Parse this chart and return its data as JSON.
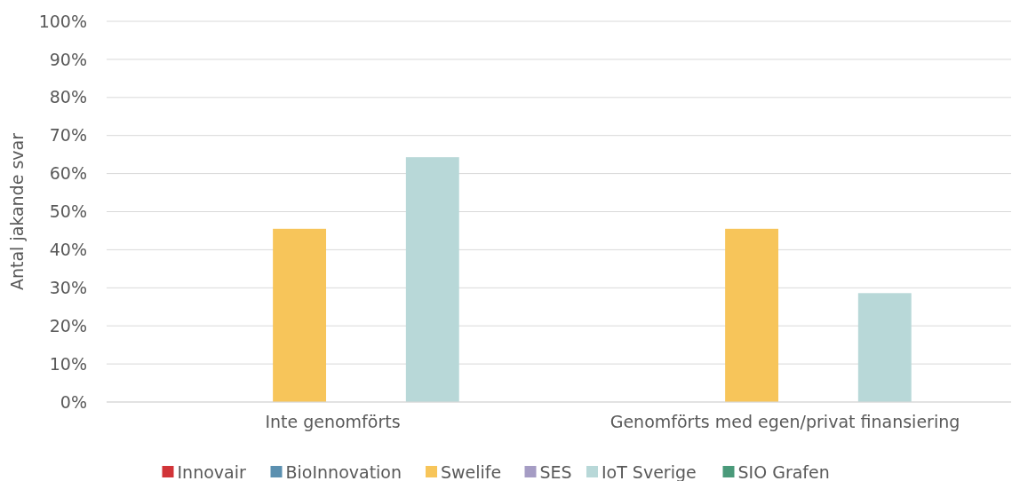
{
  "chart_data": {
    "type": "bar",
    "ylabel": "Antal jakande svar",
    "categories": [
      "Inte genomförts",
      "Genomförts med egen/privat finansiering"
    ],
    "series": [
      {
        "name": "Innovair",
        "color": "#d13438",
        "values": [
          0,
          0
        ]
      },
      {
        "name": "BioInnovation",
        "color": "#5b90b0",
        "values": [
          0,
          0
        ]
      },
      {
        "name": "Swelife",
        "color": "#f7c55a",
        "values": [
          45.5,
          45.5
        ]
      },
      {
        "name": "SES",
        "color": "#a59cc4",
        "values": [
          0,
          0
        ]
      },
      {
        "name": "IoT Sverige",
        "color": "#b8d8d8",
        "values": [
          64.3,
          28.6
        ]
      },
      {
        "name": "SIO Grafen",
        "color": "#4a9a7a",
        "values": [
          0,
          0
        ]
      }
    ],
    "ylim": [
      0,
      100
    ],
    "yticks": [
      {
        "value": 0,
        "label": "0%"
      },
      {
        "value": 10,
        "label": "10%"
      },
      {
        "value": 20,
        "label": "20%"
      },
      {
        "value": 30,
        "label": "30%"
      },
      {
        "value": 40,
        "label": "40%"
      },
      {
        "value": 50,
        "label": "50%"
      },
      {
        "value": 60,
        "label": "60%"
      },
      {
        "value": 70,
        "label": "70%"
      },
      {
        "value": 80,
        "label": "80%"
      },
      {
        "value": 90,
        "label": "90%"
      },
      {
        "value": 100,
        "label": "100%"
      }
    ],
    "grid": "y",
    "legend": "bottom"
  }
}
